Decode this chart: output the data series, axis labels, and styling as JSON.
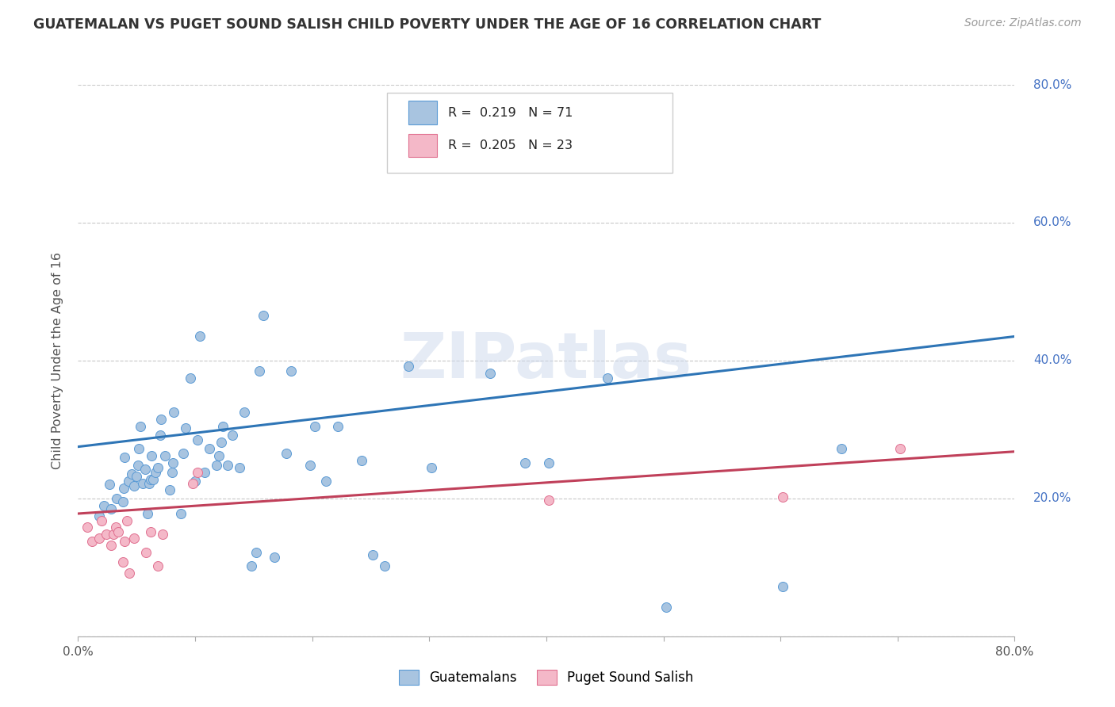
{
  "title": "GUATEMALAN VS PUGET SOUND SALISH CHILD POVERTY UNDER THE AGE OF 16 CORRELATION CHART",
  "source": "Source: ZipAtlas.com",
  "ylabel": "Child Poverty Under the Age of 16",
  "xlim": [
    0.0,
    0.8
  ],
  "ylim": [
    0.0,
    0.8
  ],
  "xticks": [
    0.0,
    0.1,
    0.2,
    0.3,
    0.4,
    0.5,
    0.6,
    0.7,
    0.8
  ],
  "xticklabels": [
    "0.0%",
    "",
    "",
    "",
    "",
    "",
    "",
    "",
    "80.0%"
  ],
  "yticks": [
    0.0,
    0.2,
    0.4,
    0.6,
    0.8
  ],
  "yticklabels_right": [
    "",
    "20.0%",
    "40.0%",
    "60.0%",
    "80.0%"
  ],
  "legend_labels": [
    "Guatemalans",
    "Puget Sound Salish"
  ],
  "r_guatemalan": 0.219,
  "n_guatemalan": 71,
  "r_salish": 0.205,
  "n_salish": 23,
  "blue_scatter_color": "#a8c4e0",
  "blue_edge_color": "#5b9bd5",
  "pink_scatter_color": "#f4b8c8",
  "pink_edge_color": "#e07090",
  "blue_line_color": "#2e75b6",
  "pink_line_color": "#c0405a",
  "right_tick_color": "#4472c4",
  "watermark": "ZIPatlas",
  "guatemalan_scatter": [
    [
      0.018,
      0.175
    ],
    [
      0.022,
      0.19
    ],
    [
      0.027,
      0.22
    ],
    [
      0.028,
      0.185
    ],
    [
      0.033,
      0.2
    ],
    [
      0.038,
      0.195
    ],
    [
      0.039,
      0.215
    ],
    [
      0.04,
      0.26
    ],
    [
      0.043,
      0.225
    ],
    [
      0.046,
      0.235
    ],
    [
      0.048,
      0.218
    ],
    [
      0.05,
      0.232
    ],
    [
      0.051,
      0.248
    ],
    [
      0.052,
      0.272
    ],
    [
      0.053,
      0.305
    ],
    [
      0.055,
      0.222
    ],
    [
      0.057,
      0.242
    ],
    [
      0.059,
      0.178
    ],
    [
      0.061,
      0.222
    ],
    [
      0.062,
      0.228
    ],
    [
      0.063,
      0.262
    ],
    [
      0.064,
      0.228
    ],
    [
      0.066,
      0.238
    ],
    [
      0.068,
      0.245
    ],
    [
      0.07,
      0.292
    ],
    [
      0.071,
      0.315
    ],
    [
      0.074,
      0.262
    ],
    [
      0.078,
      0.212
    ],
    [
      0.08,
      0.238
    ],
    [
      0.081,
      0.252
    ],
    [
      0.082,
      0.325
    ],
    [
      0.088,
      0.178
    ],
    [
      0.09,
      0.265
    ],
    [
      0.092,
      0.302
    ],
    [
      0.096,
      0.375
    ],
    [
      0.1,
      0.225
    ],
    [
      0.102,
      0.285
    ],
    [
      0.104,
      0.435
    ],
    [
      0.108,
      0.238
    ],
    [
      0.112,
      0.272
    ],
    [
      0.118,
      0.248
    ],
    [
      0.12,
      0.262
    ],
    [
      0.122,
      0.282
    ],
    [
      0.124,
      0.305
    ],
    [
      0.128,
      0.248
    ],
    [
      0.132,
      0.292
    ],
    [
      0.138,
      0.245
    ],
    [
      0.142,
      0.325
    ],
    [
      0.148,
      0.102
    ],
    [
      0.152,
      0.122
    ],
    [
      0.155,
      0.385
    ],
    [
      0.158,
      0.465
    ],
    [
      0.168,
      0.115
    ],
    [
      0.178,
      0.265
    ],
    [
      0.182,
      0.385
    ],
    [
      0.198,
      0.248
    ],
    [
      0.202,
      0.305
    ],
    [
      0.212,
      0.225
    ],
    [
      0.222,
      0.305
    ],
    [
      0.242,
      0.255
    ],
    [
      0.252,
      0.118
    ],
    [
      0.262,
      0.102
    ],
    [
      0.282,
      0.392
    ],
    [
      0.302,
      0.245
    ],
    [
      0.352,
      0.382
    ],
    [
      0.382,
      0.252
    ],
    [
      0.402,
      0.252
    ],
    [
      0.452,
      0.375
    ],
    [
      0.502,
      0.042
    ],
    [
      0.602,
      0.072
    ],
    [
      0.652,
      0.272
    ]
  ],
  "salish_scatter": [
    [
      0.008,
      0.158
    ],
    [
      0.012,
      0.138
    ],
    [
      0.018,
      0.142
    ],
    [
      0.02,
      0.168
    ],
    [
      0.024,
      0.148
    ],
    [
      0.028,
      0.132
    ],
    [
      0.03,
      0.148
    ],
    [
      0.032,
      0.158
    ],
    [
      0.034,
      0.152
    ],
    [
      0.038,
      0.108
    ],
    [
      0.04,
      0.138
    ],
    [
      0.042,
      0.168
    ],
    [
      0.044,
      0.092
    ],
    [
      0.048,
      0.142
    ],
    [
      0.058,
      0.122
    ],
    [
      0.062,
      0.152
    ],
    [
      0.068,
      0.102
    ],
    [
      0.072,
      0.148
    ],
    [
      0.098,
      0.222
    ],
    [
      0.102,
      0.238
    ],
    [
      0.402,
      0.198
    ],
    [
      0.602,
      0.202
    ],
    [
      0.702,
      0.272
    ]
  ],
  "guatemalan_trendline": [
    [
      0.0,
      0.275
    ],
    [
      0.8,
      0.435
    ]
  ],
  "salish_trendline": [
    [
      0.0,
      0.178
    ],
    [
      0.8,
      0.268
    ]
  ],
  "background_color": "#ffffff",
  "grid_color": "#c8c8c8"
}
